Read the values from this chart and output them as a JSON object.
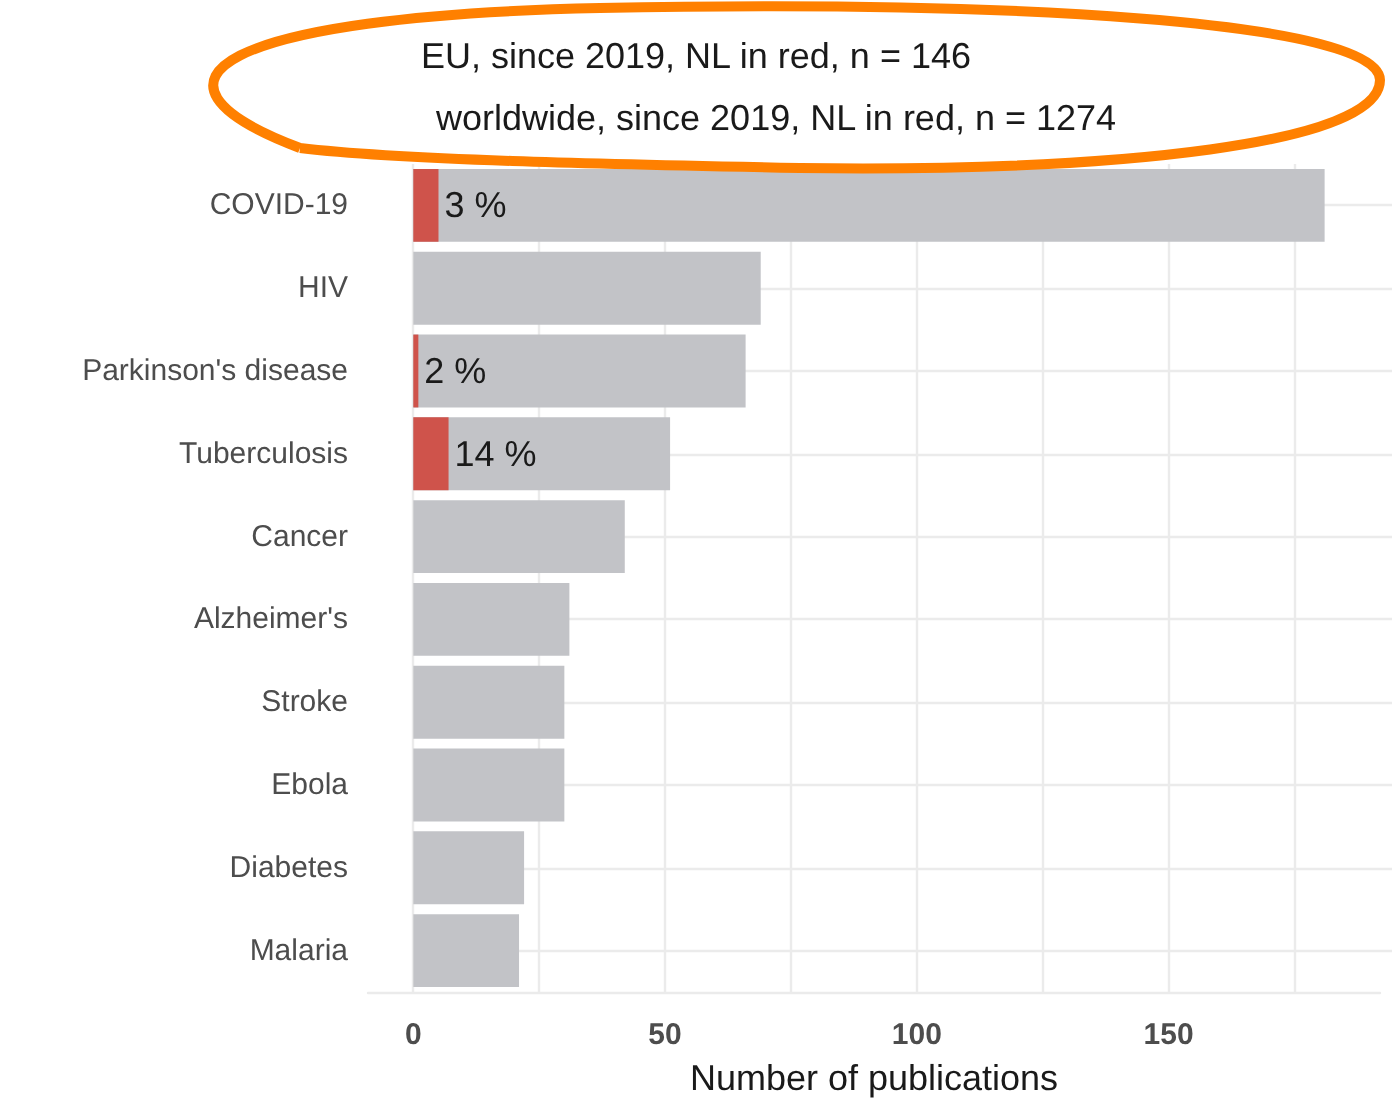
{
  "chart_data": {
    "type": "bar",
    "orientation": "horizontal",
    "title": "worldwide, since 2019, NL in red, n = 1274",
    "xlabel": "Number of publications",
    "annotations": [
      "EU, since 2019, NL in red, n =  146",
      {
        "text": "3 %",
        "x": 5,
        "y": "COVID-19"
      },
      {
        "text": "2 %",
        "x": 1,
        "y": "Parkinson's disease"
      },
      {
        "text": "14 %",
        "x": 7,
        "y": "Tuberculosis"
      }
    ],
    "categories": [
      "COVID-19",
      "HIV",
      "Parkinson's disease",
      "Tuberculosis",
      "Cancer",
      "Alzheimer's",
      "Stroke",
      "Ebola",
      "Diabetes",
      "Malaria"
    ],
    "series": [
      {
        "color": "#c2c3c7",
        "values": [
          181,
          69,
          66,
          51,
          42,
          31,
          30,
          30,
          22,
          21
        ]
      },
      {
        "color": "#cf534b",
        "values": [
          5,
          null,
          1,
          7,
          null,
          null,
          null,
          null,
          null,
          null
        ]
      }
    ],
    "xlim": [
      -9,
      192
    ],
    "xticks": [
      0,
      {
        "value": 25,
        "label": null
      },
      50,
      {
        "value": 75,
        "label": null
      },
      100,
      {
        "value": 125,
        "label": null
      },
      150,
      {
        "value": 175,
        "label": null
      }
    ],
    "grid": true
  }
}
